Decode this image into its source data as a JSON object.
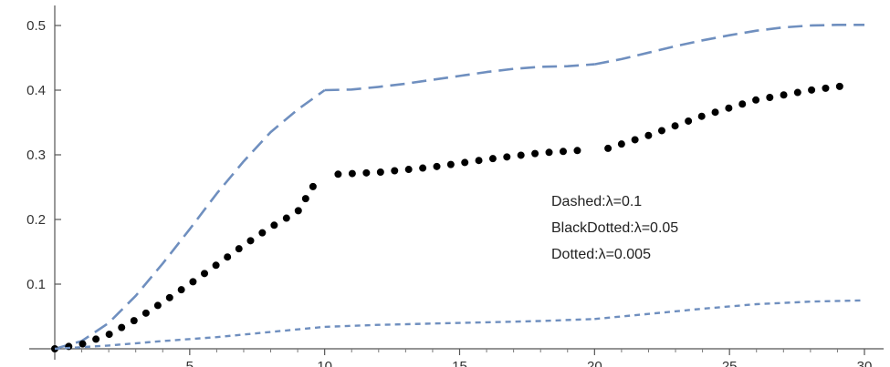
{
  "chart_data": {
    "type": "line",
    "title": "",
    "xlabel": "",
    "ylabel": "",
    "xlim": [
      0,
      30
    ],
    "ylim": [
      0,
      0.5
    ],
    "x_ticks": [
      {
        "value": 5,
        "label": "5"
      },
      {
        "value": 10,
        "label": "10"
      },
      {
        "value": 15,
        "label": "15"
      },
      {
        "value": 20,
        "label": "20"
      },
      {
        "value": 25,
        "label": "25"
      },
      {
        "value": 30,
        "label": "30"
      }
    ],
    "y_ticks": [
      {
        "value": 0.1,
        "label": "0.1"
      },
      {
        "value": 0.2,
        "label": "0.2"
      },
      {
        "value": 0.3,
        "label": "0.3"
      },
      {
        "value": 0.4,
        "label": "0.4"
      },
      {
        "value": 0.5,
        "label": "0.5"
      }
    ],
    "grid": false,
    "legend_placement": "center-right",
    "legend": [
      {
        "text": "Dashed:λ=0.1",
        "series": 0
      },
      {
        "text": "BlackDotted:λ=0.05",
        "series": 1
      },
      {
        "text": "Dotted:λ=0.005",
        "series": 2
      }
    ],
    "series": [
      {
        "style": "dashed",
        "color": "#6f8fbf",
        "segments": [
          [
            [
              0,
              0
            ],
            [
              1,
              0.012
            ],
            [
              2,
              0.04
            ],
            [
              3,
              0.082
            ],
            [
              4,
              0.132
            ],
            [
              5,
              0.185
            ],
            [
              6,
              0.24
            ],
            [
              7,
              0.29
            ],
            [
              8,
              0.335
            ],
            [
              9,
              0.37
            ],
            [
              10,
              0.4
            ]
          ],
          [
            [
              10,
              0.4
            ],
            [
              11,
              0.401
            ],
            [
              12,
              0.405
            ],
            [
              13,
              0.41
            ],
            [
              14,
              0.416
            ],
            [
              15,
              0.422
            ],
            [
              16,
              0.428
            ],
            [
              17,
              0.433
            ],
            [
              18,
              0.436
            ],
            [
              19,
              0.437
            ],
            [
              20,
              0.44
            ]
          ],
          [
            [
              20,
              0.44
            ],
            [
              21,
              0.448
            ],
            [
              22,
              0.458
            ],
            [
              23,
              0.468
            ],
            [
              24,
              0.477
            ],
            [
              25,
              0.485
            ],
            [
              26,
              0.492
            ],
            [
              27,
              0.497
            ],
            [
              28,
              0.5
            ],
            [
              29,
              0.501
            ],
            [
              30,
              0.501
            ]
          ]
        ]
      },
      {
        "style": "black-dotted",
        "color": "#000000",
        "segments": [
          [
            [
              0,
              0
            ],
            [
              1,
              0.007
            ],
            [
              2,
              0.022
            ],
            [
              3,
              0.045
            ],
            [
              4,
              0.072
            ],
            [
              5,
              0.1
            ],
            [
              6,
              0.13
            ],
            [
              7,
              0.16
            ],
            [
              8,
              0.188
            ],
            [
              9,
              0.212
            ],
            [
              9.7,
              0.26
            ]
          ],
          [
            [
              10.5,
              0.27
            ],
            [
              12,
              0.273
            ],
            [
              14,
              0.281
            ],
            [
              16,
              0.293
            ],
            [
              18,
              0.303
            ],
            [
              19.5,
              0.307
            ]
          ],
          [
            [
              20.5,
              0.31
            ],
            [
              22,
              0.33
            ],
            [
              24,
              0.36
            ],
            [
              26,
              0.385
            ],
            [
              28,
              0.4
            ],
            [
              29.5,
              0.408
            ]
          ]
        ]
      },
      {
        "style": "dotted",
        "color": "#6f8fbf",
        "segments": [
          [
            [
              0,
              0
            ],
            [
              2,
              0.005
            ],
            [
              4,
              0.012
            ],
            [
              6,
              0.018
            ],
            [
              8,
              0.026
            ],
            [
              10,
              0.034
            ]
          ],
          [
            [
              10,
              0.034
            ],
            [
              12,
              0.037
            ],
            [
              14,
              0.039
            ],
            [
              16,
              0.041
            ],
            [
              18,
              0.043
            ],
            [
              20,
              0.046
            ]
          ],
          [
            [
              20,
              0.046
            ],
            [
              22,
              0.054
            ],
            [
              24,
              0.062
            ],
            [
              26,
              0.069
            ],
            [
              28,
              0.073
            ],
            [
              30,
              0.075
            ]
          ]
        ]
      }
    ]
  }
}
